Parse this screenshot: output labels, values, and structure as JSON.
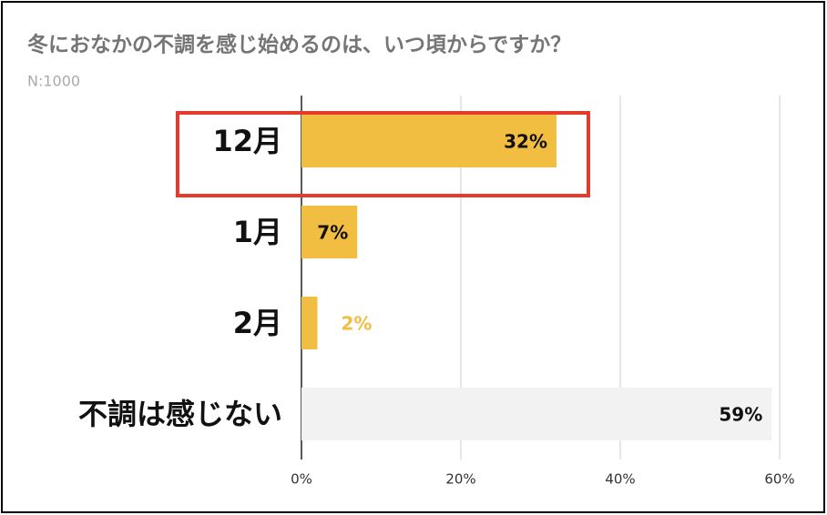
{
  "chart_data": {
    "type": "hbar",
    "title": "冬におなかの不調を感じ始めるのは、いつ頃からですか？",
    "subtitle": "N:1000",
    "categories": [
      "12月",
      "1月",
      "2月",
      "不調は感じない"
    ],
    "values": [
      32,
      7,
      2,
      59
    ],
    "value_labels": [
      "32%",
      "7%",
      "2%",
      "59%"
    ],
    "colors": [
      "#f2be42",
      "#f2be42",
      "#f2be42",
      "#f2f2f2"
    ],
    "xlim": [
      0,
      60
    ],
    "xticks": [
      {
        "value": 0,
        "label": "0%"
      },
      {
        "value": 20,
        "label": "20%"
      },
      {
        "value": 40,
        "label": "40%"
      },
      {
        "value": 60,
        "label": "60%"
      }
    ],
    "grid": true
  }
}
